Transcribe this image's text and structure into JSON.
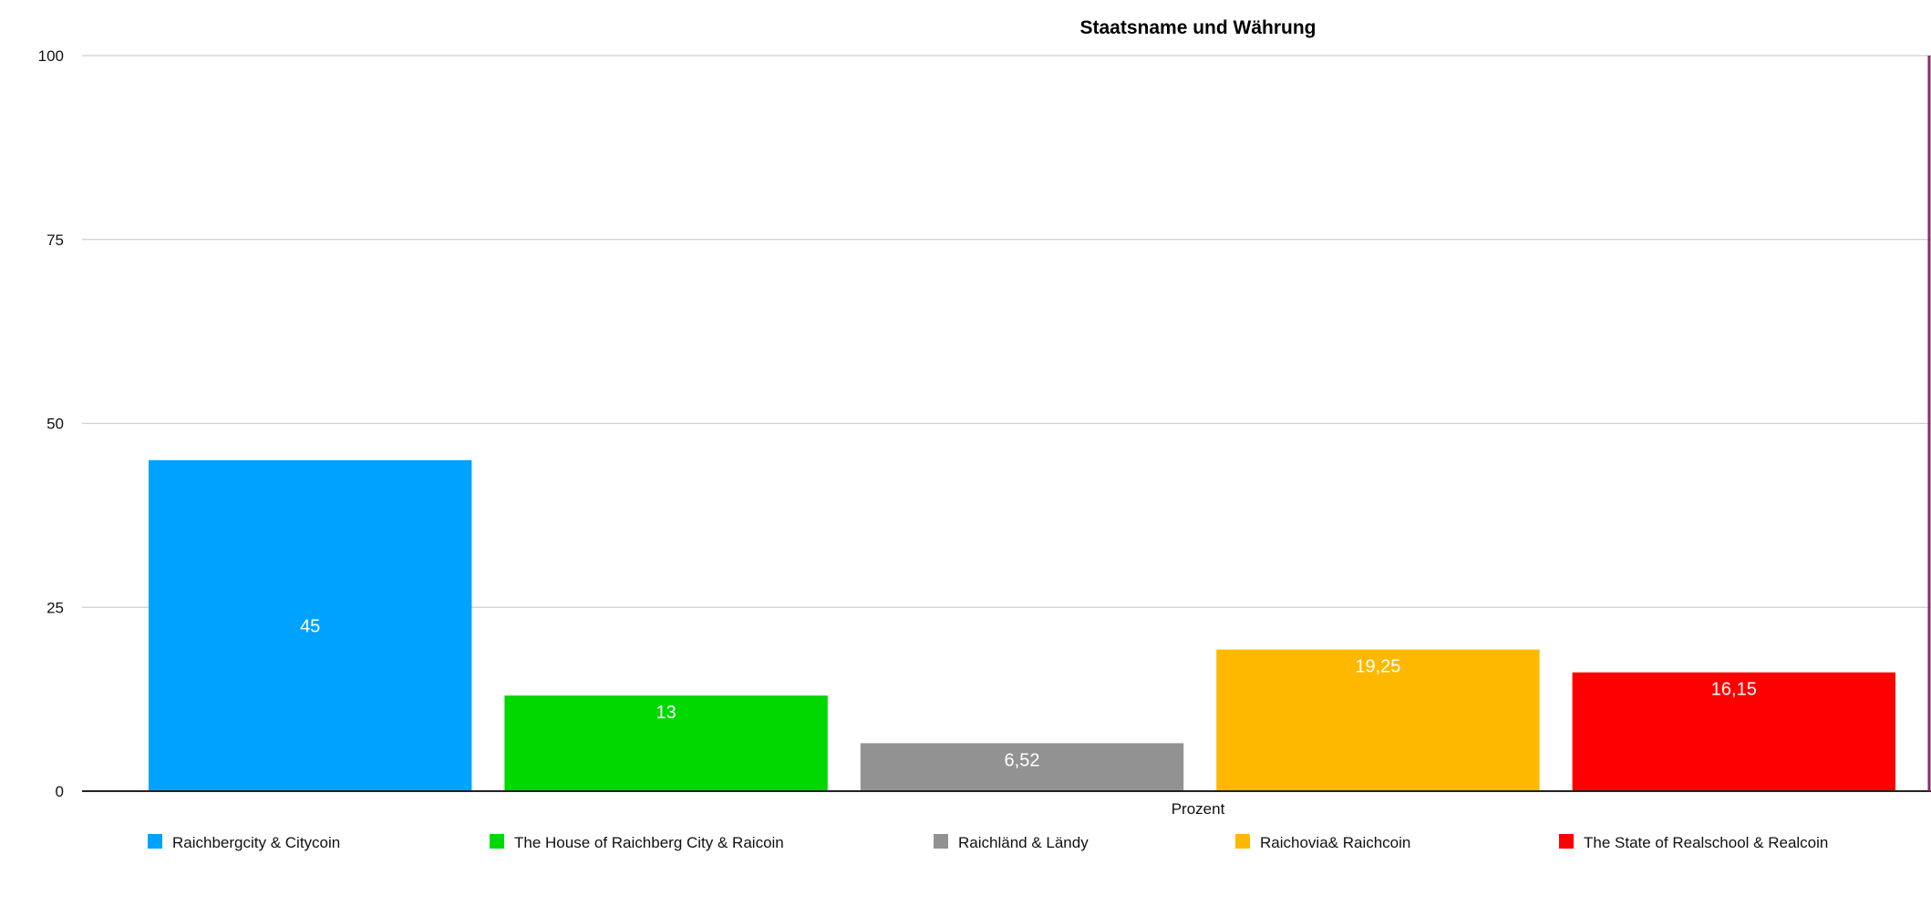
{
  "chart_data": {
    "type": "bar",
    "title": "Staatsname und Währung",
    "xlabel": "Prozent",
    "ylabel": "",
    "ylim": [
      0,
      100
    ],
    "yticks": [
      "0",
      "25",
      "50",
      "75",
      "100"
    ],
    "grid": true,
    "legend_position": "bottom",
    "series": [
      {
        "name": "Raichbergcity & Citycoin",
        "value": 45,
        "label": "45",
        "color": "#00a2ff"
      },
      {
        "name": "The House of Raichberg City & Raicoin",
        "value": 13,
        "label": "13",
        "color": "#00d800"
      },
      {
        "name": "Raichländ & Ländy",
        "value": 6.52,
        "label": "6,52",
        "color": "#929292"
      },
      {
        "name": "Raichovia& Raichcoin",
        "value": 19.25,
        "label": "19,25",
        "color": "#ffb800"
      },
      {
        "name": "The State of Realschool & Realcoin",
        "value": 16.15,
        "label": "16,15",
        "color": "#ff0000"
      }
    ]
  }
}
